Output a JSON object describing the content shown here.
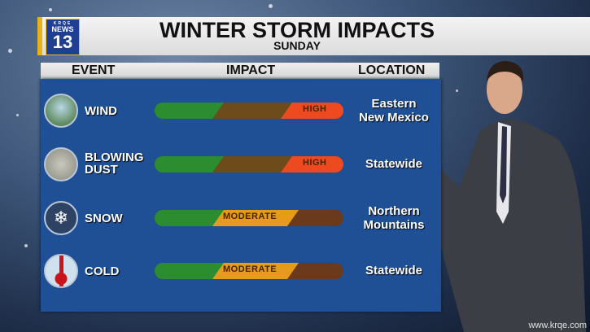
{
  "logo": {
    "call_letters": "KRQE",
    "brand": "NEWS",
    "number": "13"
  },
  "header": {
    "title": "WINTER STORM IMPACTS",
    "subtitle": "SUNDAY"
  },
  "columns": {
    "event": "EVENT",
    "impact": "IMPACT",
    "location": "LOCATION"
  },
  "rows": [
    {
      "event_line1": "WIND",
      "event_line2": "",
      "icon": "wind-icon",
      "impact": "HIGH",
      "location_line1": "Eastern",
      "location_line2": "New Mexico"
    },
    {
      "event_line1": "BLOWING",
      "event_line2": "DUST",
      "icon": "dust-icon",
      "impact": "HIGH",
      "location_line1": "Statewide",
      "location_line2": ""
    },
    {
      "event_line1": "SNOW",
      "event_line2": "",
      "icon": "snowflake-icon",
      "impact": "MODERATE",
      "location_line1": "Northern",
      "location_line2": "Mountains"
    },
    {
      "event_line1": "COLD",
      "event_line2": "",
      "icon": "thermometer-icon",
      "impact": "MODERATE",
      "location_line1": "Statewide",
      "location_line2": ""
    }
  ],
  "colors": {
    "panel": "#1f4f95",
    "low": "#2c8d30",
    "moderate": "#e79b1a",
    "high": "#ee4a20"
  },
  "watermark": "www.krqe.com"
}
